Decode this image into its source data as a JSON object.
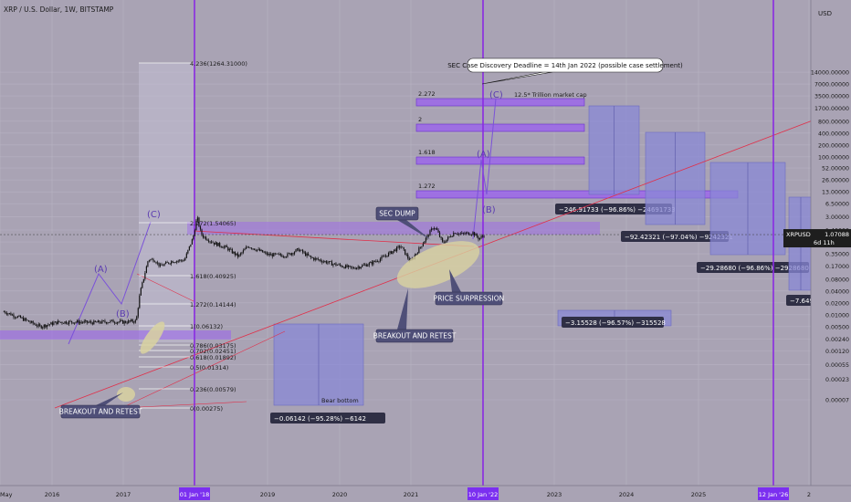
{
  "header": {
    "symbol_title": "XRP / U.S. Dollar, 1W, BITSTAMP",
    "currency": "USD"
  },
  "colors": {
    "background": "#a9a3b4",
    "candle": "#121212",
    "purple_zone": "#9b63ee",
    "purple_line": "#8a2be2",
    "red_line": "#e0304a",
    "box_fill": "#8a88d6",
    "ellipse_fill": "#d9d2a0",
    "callout_bg": "#4f4f78",
    "measure_bg": "#2f2f45",
    "price_tag_bg": "#1e1e1e"
  },
  "chart_data": {
    "type": "line",
    "title": "XRP / U.S. Dollar, 1W, BITSTAMP",
    "y_scale": "log",
    "ylabel": "USD",
    "y_ticks": [
      "14000.00000",
      "7000.00000",
      "3500.00000",
      "1700.00000",
      "800.00000",
      "400.00000",
      "200.00000",
      "100.00000",
      "52.00000",
      "26.00000",
      "13.00000",
      "6.50000",
      "3.00000",
      "1.40000",
      "0.70000",
      "0.35000",
      "0.17000",
      "0.08000",
      "0.04000",
      "0.02000",
      "0.01000",
      "0.00500",
      "0.00240",
      "0.00120",
      "0.00055",
      "0.00023",
      "0.00007"
    ],
    "x_ticks": [
      "May",
      "2016",
      "2017",
      "2019",
      "2020",
      "2021",
      "2023",
      "2024",
      "2025",
      "2"
    ],
    "x_highlighted": [
      "01 Jan '18",
      "10 Jan '22",
      "12 Jan '26"
    ],
    "last_price": {
      "symbol": "XRPUSD",
      "price": "1.07088",
      "countdown": "6d 11h"
    },
    "series": [
      {
        "name": "XRPUSD",
        "points": [
          [
            "2015-05",
            0.012
          ],
          [
            "2015-08",
            0.008
          ],
          [
            "2015-11",
            0.005
          ],
          [
            "2016-02",
            0.0065
          ],
          [
            "2016-05",
            0.0066
          ],
          [
            "2016-08",
            0.0063
          ],
          [
            "2016-11",
            0.0068
          ],
          [
            "2017-01",
            0.0065
          ],
          [
            "2017-03",
            0.007
          ],
          [
            "2017-03-20",
            0.035
          ],
          [
            "2017-04",
            0.06
          ],
          [
            "2017-05",
            0.25
          ],
          [
            "2017-06",
            0.25
          ],
          [
            "2017-07",
            0.17
          ],
          [
            "2017-09",
            0.23
          ],
          [
            "2017-11",
            0.24
          ],
          [
            "2017-12-15",
            0.9
          ],
          [
            "2018-01-05",
            3.0
          ],
          [
            "2018-01-20",
            1.4
          ],
          [
            "2018-02",
            1.0
          ],
          [
            "2018-04",
            0.65
          ],
          [
            "2018-06",
            0.5
          ],
          [
            "2018-08",
            0.3
          ],
          [
            "2018-09-20",
            0.55
          ],
          [
            "2018-11",
            0.45
          ],
          [
            "2019-01",
            0.33
          ],
          [
            "2019-04",
            0.32
          ],
          [
            "2019-06",
            0.45
          ],
          [
            "2019-08",
            0.28
          ],
          [
            "2019-12",
            0.19
          ],
          [
            "2020-03",
            0.15
          ],
          [
            "2020-06",
            0.2
          ],
          [
            "2020-08",
            0.28
          ],
          [
            "2020-11",
            0.55
          ],
          [
            "2020-12-20",
            0.22
          ],
          [
            "2021-02",
            0.45
          ],
          [
            "2021-04-15",
            1.7
          ],
          [
            "2021-05",
            1.4
          ],
          [
            "2021-06",
            0.65
          ],
          [
            "2021-08",
            1.25
          ],
          [
            "2021-09",
            1.1
          ],
          [
            "2021-11",
            1.2
          ],
          [
            "2021-12",
            0.85
          ],
          [
            "2022-01",
            1.07
          ]
        ]
      }
    ],
    "fib_levels": [
      {
        "label": "4.236(1264.31000)"
      },
      {
        "label": "2.272(1.54065)"
      },
      {
        "label": "1.618(0.40925)"
      },
      {
        "label": "1.272(0.14144)"
      },
      {
        "label": "1(0.06132)"
      },
      {
        "label": "0.786(0.03175)"
      },
      {
        "label": "0.702(0.02451)"
      },
      {
        "label": "0.618(0.01892)"
      },
      {
        "label": "0.5(0.01314)"
      },
      {
        "label": "0.236(0.00579)"
      },
      {
        "label": "0(0.00275)"
      }
    ],
    "target_bands": [
      {
        "label": "2.272",
        "note": "12.5* Trillion market cap"
      },
      {
        "label": "2"
      },
      {
        "label": "1.618"
      },
      {
        "label": "1.272"
      }
    ],
    "wave_labels": [
      "(A)",
      "(B)",
      "(C)",
      "(A)",
      "(B)",
      "(C)"
    ],
    "callouts": [
      {
        "text": "SEC Case Discovery Deadline = 14th Jan 2022 (possible case settlement)"
      },
      {
        "text": "SEC DUMP"
      },
      {
        "text": "PRICE SURPRESSION"
      },
      {
        "text": "BREAKOUT AND RETEST"
      },
      {
        "text": "BREAKOUT AND RETEST"
      }
    ],
    "bear_boxes": [
      {
        "label": "Bear bottom",
        "measure": "−0.06142 (−95.28%) −6142"
      },
      {
        "label": "Bear bottom",
        "measure": "−3.15528 (−96.57%) −315528"
      },
      {
        "label": "",
        "measure": "−246.91733 (−96.86%) −24691733"
      },
      {
        "label": "",
        "measure": "−92.42321 (−97.04%) −9242321"
      },
      {
        "label": "",
        "measure": "−29.28680 (−96.86%) −2928680"
      },
      {
        "label": "",
        "measure": "−7.649"
      }
    ]
  }
}
